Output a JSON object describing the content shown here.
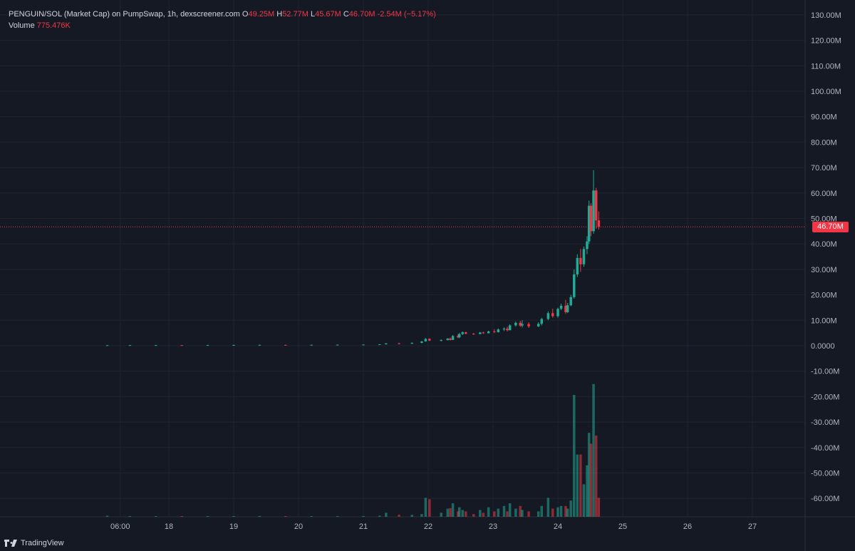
{
  "legend": {
    "symbol": "PENGUIN/SOL (Market Cap) on PumpSwap, 1h, dexscreener.com",
    "o_label": "O",
    "o": "49.25M",
    "h_label": "H",
    "h": "52.77M",
    "l_label": "L",
    "l": "45.67M",
    "c_label": "C",
    "c": "46.70M",
    "change": "-2.54M (−5.17%)",
    "volume_label": "Volume",
    "volume": "775.476K"
  },
  "price_tag": "46.70M",
  "brand": "TradingView",
  "colors": {
    "background": "#151924",
    "grid": "#20242f",
    "up": "#22ab94",
    "down": "#f23645",
    "text": "#d1d4dc"
  },
  "chart_data": {
    "type": "candlestick",
    "ylim": [
      -68,
      130
    ],
    "y_ticks": [
      {
        "v": 130,
        "label": "130.00M"
      },
      {
        "v": 120,
        "label": "120.00M"
      },
      {
        "v": 110,
        "label": "110.00M"
      },
      {
        "v": 100,
        "label": "100.00M"
      },
      {
        "v": 90,
        "label": "90.00M"
      },
      {
        "v": 80,
        "label": "80.00M"
      },
      {
        "v": 70,
        "label": "70.00M"
      },
      {
        "v": 60,
        "label": "60.00M"
      },
      {
        "v": 50,
        "label": "50.00M"
      },
      {
        "v": 40,
        "label": "40.00M"
      },
      {
        "v": 30,
        "label": "30.00M"
      },
      {
        "v": 20,
        "label": "20.00M"
      },
      {
        "v": 10,
        "label": "10.00M"
      },
      {
        "v": 0,
        "label": "0.0000"
      },
      {
        "v": -10,
        "label": "-10.00M"
      },
      {
        "v": -20,
        "label": "-20.00M"
      },
      {
        "v": -30,
        "label": "-30.00M"
      },
      {
        "v": -40,
        "label": "-40.00M"
      },
      {
        "v": -50,
        "label": "-50.00M"
      },
      {
        "v": -60,
        "label": "-60.00M"
      }
    ],
    "x_ticks": [
      {
        "t": -0.75,
        "label": "06:00"
      },
      {
        "t": 0,
        "label": "18"
      },
      {
        "t": 1,
        "label": "19"
      },
      {
        "t": 2,
        "label": "20"
      },
      {
        "t": 3,
        "label": "21"
      },
      {
        "t": 4,
        "label": "22"
      },
      {
        "t": 5,
        "label": "23"
      },
      {
        "t": 6,
        "label": "24"
      },
      {
        "t": 7,
        "label": "25"
      },
      {
        "t": 8,
        "label": "26"
      },
      {
        "t": 9,
        "label": "27"
      }
    ],
    "current_price": 46.7,
    "candles": [
      {
        "t": -0.95,
        "o": 0.15,
        "h": 0.25,
        "l": 0.1,
        "c": 0.2,
        "v": 0.4
      },
      {
        "t": -0.6,
        "o": 0.2,
        "h": 0.3,
        "l": 0.15,
        "c": 0.25,
        "v": 0.2
      },
      {
        "t": -0.2,
        "o": 0.2,
        "h": 0.3,
        "l": 0.15,
        "c": 0.22,
        "v": 0.2
      },
      {
        "t": 0.2,
        "o": 0.22,
        "h": 0.3,
        "l": 0.18,
        "c": 0.2,
        "v": 0.2
      },
      {
        "t": 0.6,
        "o": 0.2,
        "h": 0.3,
        "l": 0.15,
        "c": 0.25,
        "v": 0.2
      },
      {
        "t": 1.0,
        "o": 0.25,
        "h": 0.35,
        "l": 0.2,
        "c": 0.3,
        "v": 0.2
      },
      {
        "t": 1.4,
        "o": 0.3,
        "h": 0.4,
        "l": 0.25,
        "c": 0.32,
        "v": 0.3
      },
      {
        "t": 1.8,
        "o": 0.32,
        "h": 0.4,
        "l": 0.28,
        "c": 0.3,
        "v": 0.2
      },
      {
        "t": 2.2,
        "o": 0.3,
        "h": 0.4,
        "l": 0.25,
        "c": 0.35,
        "v": 0.2
      },
      {
        "t": 2.6,
        "o": 0.35,
        "h": 0.45,
        "l": 0.3,
        "c": 0.4,
        "v": 0.2
      },
      {
        "t": 3.0,
        "o": 0.4,
        "h": 0.5,
        "l": 0.35,
        "c": 0.45,
        "v": 0.3
      },
      {
        "t": 3.25,
        "o": 0.45,
        "h": 0.6,
        "l": 0.4,
        "c": 0.55,
        "v": 0.4
      },
      {
        "t": 3.35,
        "o": 0.55,
        "h": 1.0,
        "l": 0.5,
        "c": 0.9,
        "v": 1.5
      },
      {
        "t": 3.55,
        "o": 0.9,
        "h": 1.2,
        "l": 0.7,
        "c": 0.8,
        "v": 0.8
      },
      {
        "t": 3.75,
        "o": 0.8,
        "h": 1.3,
        "l": 0.7,
        "c": 1.1,
        "v": 0.7
      },
      {
        "t": 3.9,
        "o": 1.1,
        "h": 1.8,
        "l": 1.0,
        "c": 1.7,
        "v": 1.0
      },
      {
        "t": 3.96,
        "o": 1.7,
        "h": 3.0,
        "l": 1.6,
        "c": 2.7,
        "v": 7.0
      },
      {
        "t": 4.02,
        "o": 2.7,
        "h": 2.9,
        "l": 1.8,
        "c": 2.0,
        "v": 6.5
      },
      {
        "t": 4.2,
        "o": 2.0,
        "h": 2.5,
        "l": 1.7,
        "c": 2.2,
        "v": 1.5
      },
      {
        "t": 4.3,
        "o": 2.2,
        "h": 3.0,
        "l": 2.1,
        "c": 2.8,
        "v": 3.0
      },
      {
        "t": 4.34,
        "o": 2.8,
        "h": 3.2,
        "l": 2.0,
        "c": 2.3,
        "v": 3.2
      },
      {
        "t": 4.38,
        "o": 2.3,
        "h": 4.2,
        "l": 2.2,
        "c": 3.8,
        "v": 5.0
      },
      {
        "t": 4.46,
        "o": 3.8,
        "h": 4.5,
        "l": 3.0,
        "c": 3.3,
        "v": 2.0
      },
      {
        "t": 4.48,
        "o": 3.3,
        "h": 5.0,
        "l": 3.0,
        "c": 4.6,
        "v": 3.5
      },
      {
        "t": 4.53,
        "o": 4.6,
        "h": 5.6,
        "l": 4.2,
        "c": 5.3,
        "v": 2.5
      },
      {
        "t": 4.58,
        "o": 5.3,
        "h": 5.5,
        "l": 4.5,
        "c": 4.7,
        "v": 2.0
      },
      {
        "t": 4.7,
        "o": 4.7,
        "h": 5.0,
        "l": 4.3,
        "c": 4.6,
        "v": 1.0
      },
      {
        "t": 4.8,
        "o": 4.6,
        "h": 5.4,
        "l": 4.5,
        "c": 5.2,
        "v": 2.5
      },
      {
        "t": 4.85,
        "o": 5.2,
        "h": 5.5,
        "l": 4.7,
        "c": 4.9,
        "v": 1.5
      },
      {
        "t": 4.93,
        "o": 4.9,
        "h": 5.9,
        "l": 4.8,
        "c": 5.6,
        "v": 3.5
      },
      {
        "t": 5.02,
        "o": 5.6,
        "h": 6.5,
        "l": 5.0,
        "c": 5.3,
        "v": 2.0
      },
      {
        "t": 5.08,
        "o": 5.3,
        "h": 6.8,
        "l": 5.2,
        "c": 6.4,
        "v": 3.0
      },
      {
        "t": 5.17,
        "o": 6.4,
        "h": 7.2,
        "l": 5.8,
        "c": 6.7,
        "v": 4.0
      },
      {
        "t": 5.22,
        "o": 6.7,
        "h": 7.5,
        "l": 5.6,
        "c": 6.1,
        "v": 2.0
      },
      {
        "t": 5.26,
        "o": 6.1,
        "h": 8.4,
        "l": 6.0,
        "c": 8.0,
        "v": 5.0
      },
      {
        "t": 5.35,
        "o": 8.0,
        "h": 9.5,
        "l": 7.5,
        "c": 9.0,
        "v": 3.0
      },
      {
        "t": 5.42,
        "o": 9.0,
        "h": 9.8,
        "l": 7.4,
        "c": 7.9,
        "v": 4.0
      },
      {
        "t": 5.45,
        "o": 7.9,
        "h": 10.0,
        "l": 7.2,
        "c": 8.5,
        "v": 2.5
      },
      {
        "t": 5.55,
        "o": 8.5,
        "h": 9.2,
        "l": 7.0,
        "c": 7.6,
        "v": 2.0
      },
      {
        "t": 5.7,
        "o": 7.6,
        "h": 9.2,
        "l": 7.3,
        "c": 8.6,
        "v": 2.0
      },
      {
        "t": 5.75,
        "o": 8.6,
        "h": 11.0,
        "l": 8.0,
        "c": 10.5,
        "v": 4.0
      },
      {
        "t": 5.85,
        "o": 10.5,
        "h": 13.5,
        "l": 10.0,
        "c": 12.8,
        "v": 7.0
      },
      {
        "t": 5.92,
        "o": 12.8,
        "h": 14.5,
        "l": 11.0,
        "c": 11.6,
        "v": 3.0
      },
      {
        "t": 6.0,
        "o": 11.6,
        "h": 15.0,
        "l": 11.0,
        "c": 14.5,
        "v": 3.5
      },
      {
        "t": 6.05,
        "o": 14.5,
        "h": 16.5,
        "l": 14.0,
        "c": 15.7,
        "v": 4.0
      },
      {
        "t": 6.12,
        "o": 15.7,
        "h": 18.0,
        "l": 12.5,
        "c": 13.2,
        "v": 4.0
      },
      {
        "t": 6.15,
        "o": 13.2,
        "h": 16.8,
        "l": 12.9,
        "c": 15.9,
        "v": 3.0
      },
      {
        "t": 6.2,
        "o": 15.9,
        "h": 20.0,
        "l": 15.5,
        "c": 19.1,
        "v": 6.0
      },
      {
        "t": 6.25,
        "o": 19.1,
        "h": 30.0,
        "l": 18.5,
        "c": 28.0,
        "v": 45.0
      },
      {
        "t": 6.3,
        "o": 28.0,
        "h": 36.0,
        "l": 27.0,
        "c": 34.5,
        "v": 23.0
      },
      {
        "t": 6.35,
        "o": 34.5,
        "h": 38.0,
        "l": 29.0,
        "c": 32.0,
        "v": 23.0
      },
      {
        "t": 6.4,
        "o": 32.0,
        "h": 39.0,
        "l": 31.0,
        "c": 38.0,
        "v": 12.0
      },
      {
        "t": 6.45,
        "o": 38.0,
        "h": 43.0,
        "l": 36.0,
        "c": 41.0,
        "v": 19.0
      },
      {
        "t": 6.48,
        "o": 41.0,
        "h": 57.0,
        "l": 40.0,
        "c": 55.0,
        "v": 31.0
      },
      {
        "t": 6.51,
        "o": 55.0,
        "h": 56.0,
        "l": 43.0,
        "c": 45.0,
        "v": 27.0
      },
      {
        "t": 6.55,
        "o": 45.0,
        "h": 69.0,
        "l": 44.0,
        "c": 61.0,
        "v": 49.0
      },
      {
        "t": 6.59,
        "o": 61.0,
        "h": 62.0,
        "l": 46.0,
        "c": 49.25,
        "v": 30.0
      },
      {
        "t": 6.63,
        "o": 49.25,
        "h": 52.77,
        "l": 45.67,
        "c": 46.7,
        "v": 7.0
      }
    ]
  }
}
